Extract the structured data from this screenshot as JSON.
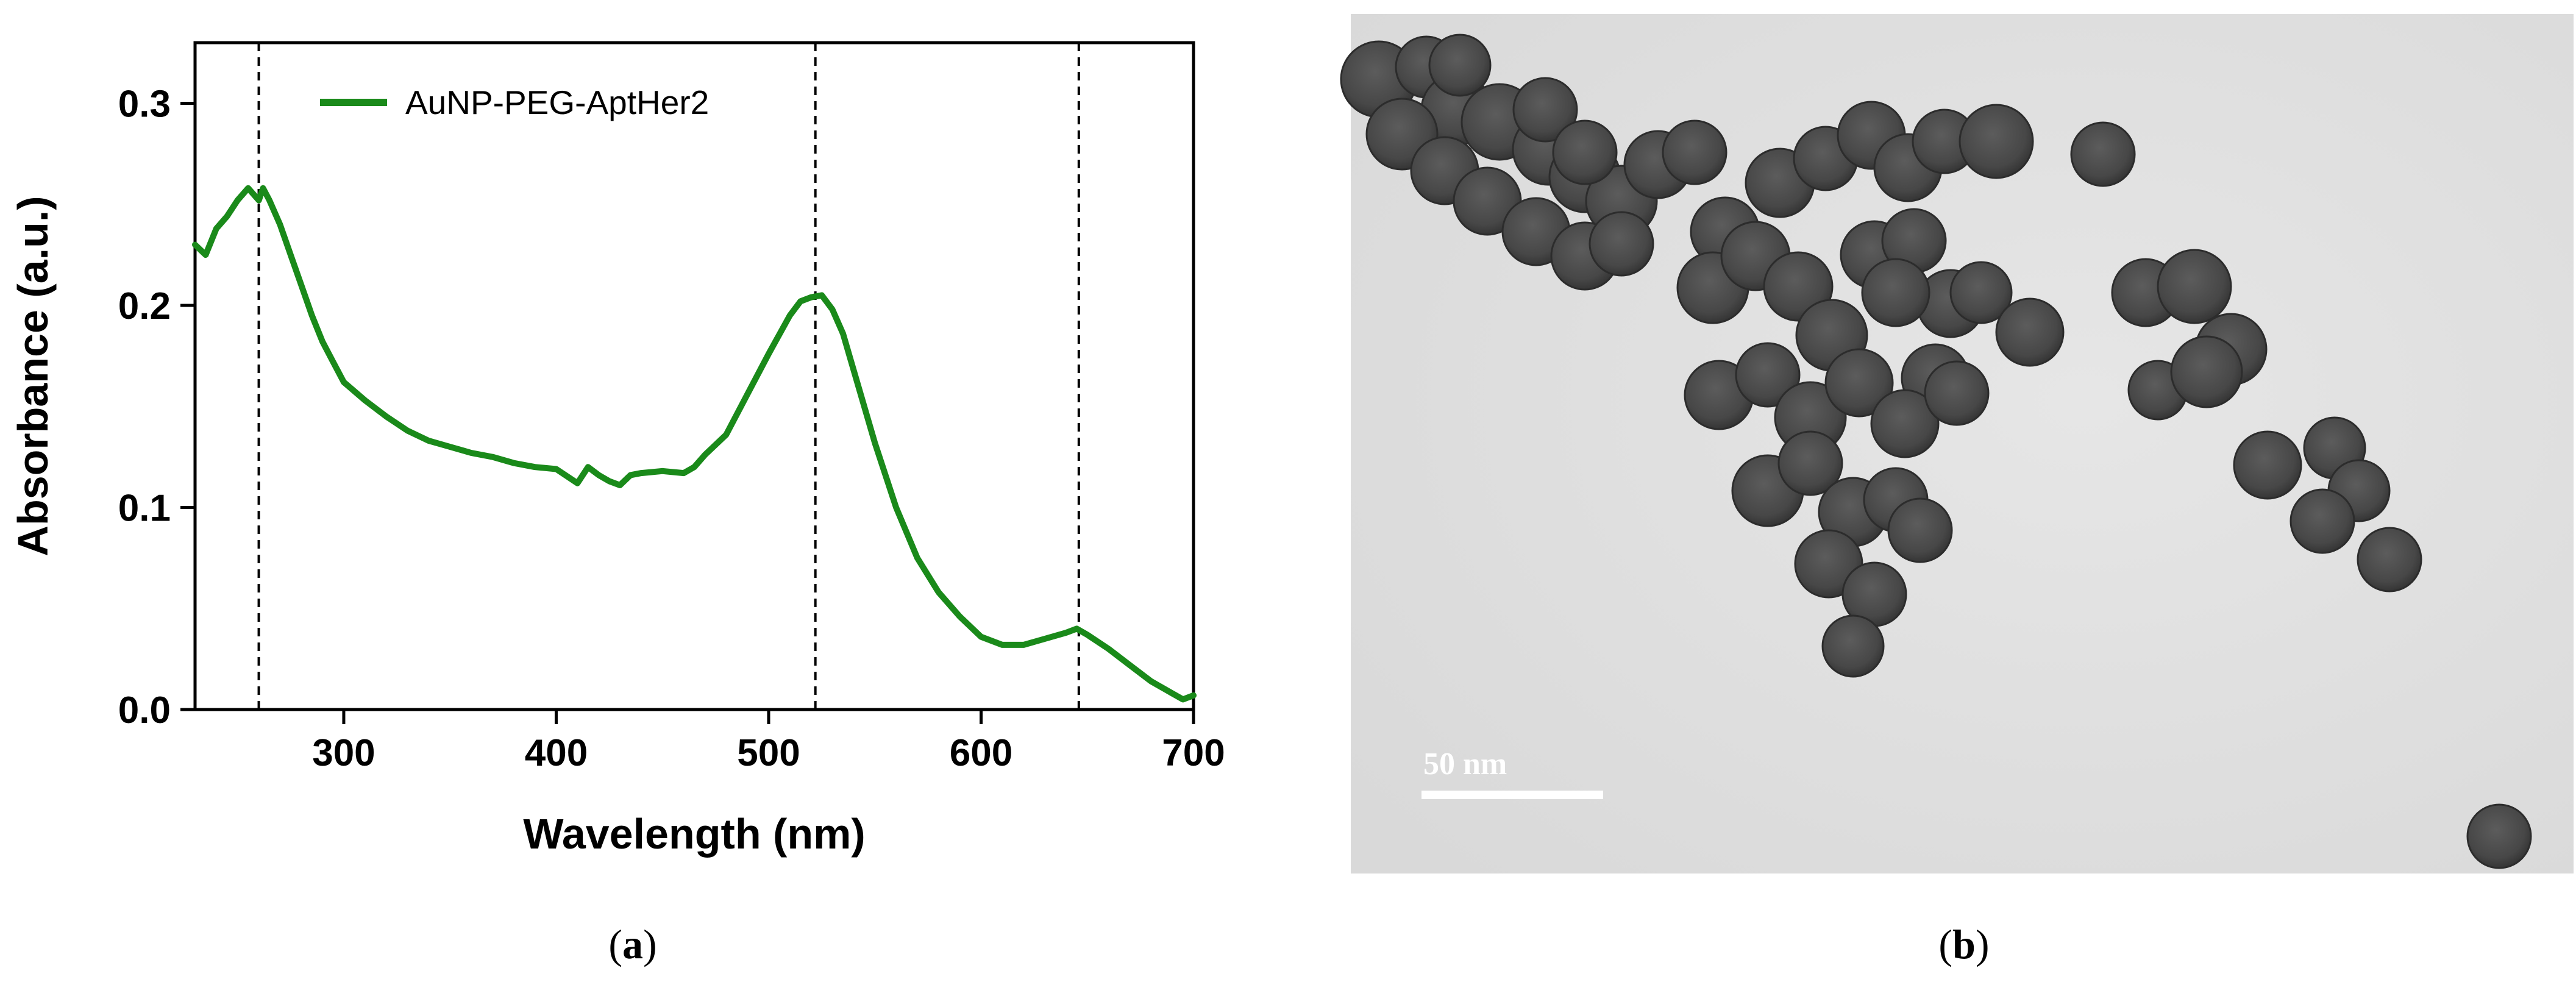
{
  "chart_data": {
    "type": "line",
    "xlabel": "Wavelength (nm)",
    "ylabel": "Absorbance (a.u.)",
    "xlim": [
      230,
      700
    ],
    "ylim": [
      0,
      0.33
    ],
    "x_ticks": [
      "300",
      "400",
      "500",
      "600",
      "700"
    ],
    "y_ticks": [
      "0.0",
      "0.1",
      "0.2",
      "0.3"
    ],
    "legend": {
      "label": "AuNP-PEG-AptHer2",
      "placement": "top-center"
    },
    "grid": false,
    "reference_lines_x": [
      260,
      522,
      646
    ],
    "series": [
      {
        "name": "AuNP-PEG-AptHer2",
        "color": "#1a8a1a",
        "x": [
          230,
          235,
          240,
          245,
          250,
          255,
          260,
          262,
          265,
          270,
          275,
          280,
          285,
          290,
          295,
          300,
          310,
          320,
          330,
          340,
          350,
          360,
          370,
          380,
          390,
          400,
          410,
          415,
          420,
          425,
          430,
          435,
          440,
          450,
          460,
          465,
          470,
          480,
          490,
          500,
          510,
          515,
          520,
          525,
          530,
          535,
          540,
          550,
          560,
          570,
          580,
          590,
          600,
          605,
          610,
          615,
          620,
          630,
          640,
          645,
          650,
          660,
          670,
          680,
          690,
          695,
          700
        ],
        "values": [
          0.23,
          0.225,
          0.238,
          0.244,
          0.252,
          0.258,
          0.252,
          0.258,
          0.252,
          0.24,
          0.225,
          0.21,
          0.195,
          0.182,
          0.172,
          0.162,
          0.153,
          0.145,
          0.138,
          0.133,
          0.13,
          0.127,
          0.125,
          0.122,
          0.12,
          0.119,
          0.112,
          0.12,
          0.116,
          0.113,
          0.111,
          0.116,
          0.117,
          0.118,
          0.117,
          0.12,
          0.126,
          0.136,
          0.156,
          0.176,
          0.195,
          0.202,
          0.204,
          0.205,
          0.198,
          0.186,
          0.168,
          0.132,
          0.1,
          0.075,
          0.058,
          0.046,
          0.036,
          0.034,
          0.032,
          0.032,
          0.032,
          0.035,
          0.038,
          0.04,
          0.037,
          0.03,
          0.022,
          0.014,
          0.008,
          0.005,
          0.007
        ]
      }
    ]
  },
  "panels": {
    "a_label_open": "(",
    "a_label_letter": "a",
    "a_label_close": ")",
    "b_label_open": "(",
    "b_label_letter": "b",
    "b_label_close": ")"
  },
  "micrograph": {
    "scale_bar_label": "50 nm",
    "background_color": "#e2e2e2",
    "particle_color": "#4a4a4a"
  }
}
